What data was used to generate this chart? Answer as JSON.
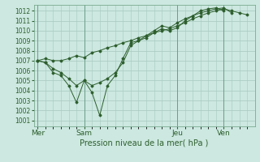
{
  "background_color": "#cce8e0",
  "grid_color": "#a8c8c0",
  "line_color": "#2d5e2d",
  "marker_color": "#2d5e2d",
  "title": "Pression niveau de la mer( hPa )",
  "x_ticks_labels": [
    "Mer",
    "Sam",
    "Jeu",
    "Ven"
  ],
  "x_ticks_pos": [
    0,
    36,
    108,
    144
  ],
  "xlim": [
    -3,
    168
  ],
  "ylim": [
    1000.4,
    1012.6
  ],
  "yticks": [
    1001,
    1002,
    1003,
    1004,
    1005,
    1006,
    1007,
    1008,
    1009,
    1010,
    1011,
    1012
  ],
  "series": [
    {
      "x": [
        0,
        6,
        12,
        18,
        24,
        30,
        36,
        42,
        48,
        54,
        60,
        66,
        72,
        78,
        84,
        90,
        96,
        102,
        108,
        114,
        120,
        126,
        132,
        138,
        144,
        150,
        156,
        162
      ],
      "y": [
        1007.0,
        1007.2,
        1007.0,
        1007.0,
        1007.2,
        1007.5,
        1007.3,
        1007.8,
        1008.0,
        1008.3,
        1008.5,
        1008.8,
        1009.0,
        1009.3,
        1009.5,
        1009.8,
        1010.0,
        1010.2,
        1010.5,
        1010.8,
        1011.2,
        1011.5,
        1011.8,
        1012.0,
        1012.2,
        1012.0,
        1011.8,
        1011.6
      ]
    },
    {
      "x": [
        0,
        6,
        12,
        18,
        24,
        30,
        36,
        42,
        48,
        54,
        60,
        66,
        72,
        78,
        84,
        90,
        96,
        102,
        108,
        114,
        120,
        126,
        132,
        138,
        144,
        150
      ],
      "y": [
        1007.0,
        1006.8,
        1006.2,
        1005.8,
        1005.2,
        1004.5,
        1005.0,
        1004.5,
        1004.8,
        1005.2,
        1005.8,
        1006.8,
        1008.5,
        1009.0,
        1009.3,
        1009.8,
        1010.2,
        1010.0,
        1010.3,
        1011.0,
        1011.5,
        1011.8,
        1012.0,
        1012.2,
        1012.3,
        1011.8
      ]
    },
    {
      "x": [
        0,
        6,
        12,
        18,
        24,
        30,
        36,
        42,
        48,
        54,
        60,
        66,
        72,
        78,
        84,
        90,
        96,
        102,
        108,
        114,
        120,
        126,
        132,
        138,
        144
      ],
      "y": [
        1007.0,
        1006.8,
        1005.8,
        1005.5,
        1004.5,
        1002.8,
        1005.0,
        1003.8,
        1001.5,
        1004.5,
        1005.5,
        1007.2,
        1008.8,
        1009.0,
        1009.5,
        1010.0,
        1010.5,
        1010.3,
        1010.8,
        1011.2,
        1011.5,
        1012.0,
        1012.2,
        1012.3,
        1012.0
      ]
    }
  ]
}
